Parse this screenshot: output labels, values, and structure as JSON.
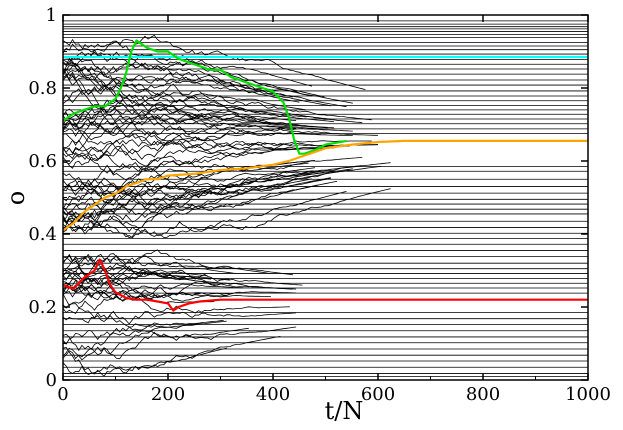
{
  "chart_data": {
    "type": "line",
    "title": "",
    "xlabel": "t/N",
    "ylabel": "o",
    "xlim": [
      0,
      1000
    ],
    "ylim": [
      0,
      1
    ],
    "grid": false,
    "legend": "none",
    "x_ticks": [
      0,
      200,
      400,
      600,
      800,
      1000
    ],
    "x_tick_labels": [
      "0",
      "200",
      "400",
      "600",
      "800",
      "1000"
    ],
    "y_ticks": [
      0,
      0.2,
      0.4,
      0.6,
      0.8,
      1
    ],
    "y_tick_labels": [
      "0",
      "0.2",
      "0.4",
      "0.6",
      "0.8",
      "1"
    ],
    "background_color": "#000000",
    "constant_opinions": [
      0.984,
      0.975,
      0.968,
      0.962,
      0.955,
      0.947,
      0.938,
      0.925,
      0.915,
      0.905,
      0.893,
      0.878,
      0.865,
      0.852,
      0.838,
      0.822,
      0.808,
      0.792,
      0.778,
      0.765,
      0.752,
      0.74,
      0.728,
      0.715,
      0.702,
      0.688,
      0.675,
      0.585,
      0.572,
      0.55,
      0.53,
      0.512,
      0.495,
      0.482,
      0.468,
      0.455,
      0.435,
      0.418,
      0.402,
      0.388,
      0.372,
      0.355,
      0.338,
      0.32,
      0.305,
      0.292,
      0.278,
      0.265,
      0.252,
      0.238,
      0.185,
      0.168,
      0.152,
      0.135,
      0.118,
      0.102,
      0.085,
      0.068,
      0.052,
      0.035,
      0.018,
      0.01
    ],
    "series": [
      {
        "color": "#00ffff",
        "x": [
          0,
          1000
        ],
        "y": [
          0.885,
          0.885
        ]
      },
      {
        "color": "#00e000",
        "x": [
          0,
          20,
          40,
          60,
          80,
          100,
          110,
          120,
          130,
          140,
          150,
          160,
          180,
          200,
          220,
          240,
          260,
          280,
          300,
          320,
          340,
          360,
          380,
          400,
          420,
          430,
          440,
          450,
          460,
          480,
          500,
          520,
          540
        ],
        "y": [
          0.71,
          0.73,
          0.74,
          0.75,
          0.75,
          0.77,
          0.8,
          0.84,
          0.9,
          0.93,
          0.92,
          0.91,
          0.9,
          0.9,
          0.88,
          0.87,
          0.86,
          0.85,
          0.85,
          0.83,
          0.82,
          0.81,
          0.8,
          0.79,
          0.76,
          0.72,
          0.66,
          0.62,
          0.62,
          0.63,
          0.645,
          0.65,
          0.655
        ]
      },
      {
        "color": "#ffa500",
        "x": [
          0,
          20,
          40,
          60,
          80,
          100,
          120,
          140,
          160,
          180,
          200,
          250,
          300,
          350,
          400,
          430,
          460,
          480,
          500,
          550,
          600,
          650,
          700,
          800,
          900,
          1000
        ],
        "y": [
          0.41,
          0.43,
          0.46,
          0.48,
          0.5,
          0.51,
          0.53,
          0.54,
          0.55,
          0.55,
          0.56,
          0.565,
          0.575,
          0.58,
          0.59,
          0.6,
          0.615,
          0.625,
          0.635,
          0.645,
          0.652,
          0.655,
          0.655,
          0.655,
          0.655,
          0.655
        ]
      },
      {
        "color": "#ff0000",
        "x": [
          0,
          20,
          40,
          60,
          70,
          80,
          90,
          100,
          120,
          140,
          160,
          180,
          200,
          210,
          220,
          240,
          260,
          300,
          350,
          400,
          450,
          500,
          600,
          700,
          800,
          900,
          1000
        ],
        "y": [
          0.26,
          0.25,
          0.28,
          0.3,
          0.33,
          0.3,
          0.26,
          0.24,
          0.225,
          0.22,
          0.22,
          0.215,
          0.21,
          0.19,
          0.2,
          0.21,
          0.215,
          0.22,
          0.22,
          0.22,
          0.22,
          0.22,
          0.22,
          0.22,
          0.22,
          0.22,
          0.22
        ]
      }
    ]
  }
}
